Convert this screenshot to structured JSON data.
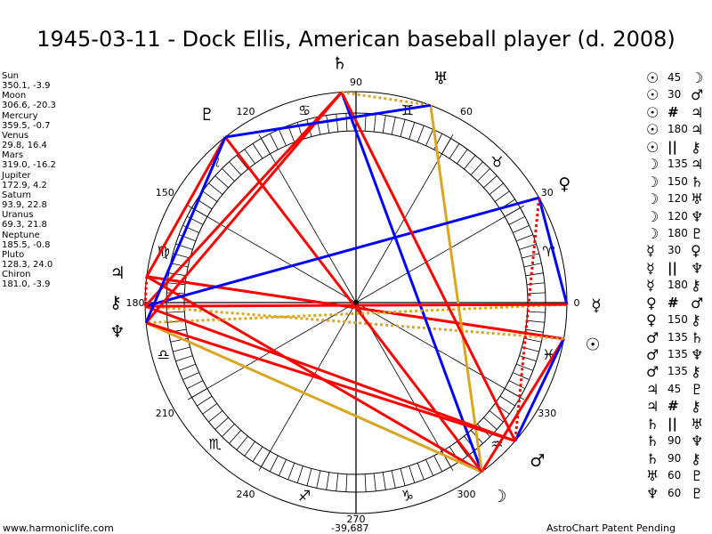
{
  "title": "1945-03-11 - Dock Ellis, American baseball player (d. 2008)",
  "planets": [
    {
      "name": "Sun",
      "coords": "350.1, -3.9",
      "lon": 350.1,
      "glyph": "☉"
    },
    {
      "name": "Moon",
      "coords": "306.6, -20.3",
      "lon": 306.6,
      "glyph": "☽"
    },
    {
      "name": "Mercury",
      "coords": "359.5, -0.7",
      "lon": 359.5,
      "glyph": "☿"
    },
    {
      "name": "Venus",
      "coords": "29.8, 16.4",
      "lon": 29.8,
      "glyph": "♀"
    },
    {
      "name": "Mars",
      "coords": "319.0, -16.2",
      "lon": 319.0,
      "glyph": "♂"
    },
    {
      "name": "Jupiter",
      "coords": "172.9, 4.2",
      "lon": 172.9,
      "glyph": "♃"
    },
    {
      "name": "Saturn",
      "coords": "93.9, 22.8",
      "lon": 93.9,
      "glyph": "♄"
    },
    {
      "name": "Uranus",
      "coords": "69.3, 21.8",
      "lon": 69.3,
      "glyph": "♅"
    },
    {
      "name": "Neptune",
      "coords": "185.5, -0.8",
      "lon": 185.5,
      "glyph": "♆"
    },
    {
      "name": "Pluto",
      "coords": "128.3, 24.0",
      "lon": 128.3,
      "glyph": "♇"
    },
    {
      "name": "Chiron",
      "coords": "181.0, -3.9",
      "lon": 181.0,
      "glyph": "⚷"
    }
  ],
  "aspects": [
    {
      "p1": "Sun",
      "a": "45",
      "p2": "Moon"
    },
    {
      "p1": "Sun",
      "a": "30",
      "p2": "Mars"
    },
    {
      "p1": "Sun",
      "a": "#",
      "p2": "Jupiter"
    },
    {
      "p1": "Sun",
      "a": "180",
      "p2": "Jupiter"
    },
    {
      "p1": "Sun",
      "a": "||",
      "p2": "Chiron"
    },
    {
      "p1": "Moon",
      "a": "135",
      "p2": "Jupiter"
    },
    {
      "p1": "Moon",
      "a": "150",
      "p2": "Saturn"
    },
    {
      "p1": "Moon",
      "a": "120",
      "p2": "Uranus"
    },
    {
      "p1": "Moon",
      "a": "120",
      "p2": "Neptune"
    },
    {
      "p1": "Moon",
      "a": "180",
      "p2": "Pluto"
    },
    {
      "p1": "Mercury",
      "a": "30",
      "p2": "Venus"
    },
    {
      "p1": "Mercury",
      "a": "||",
      "p2": "Neptune"
    },
    {
      "p1": "Mercury",
      "a": "180",
      "p2": "Chiron"
    },
    {
      "p1": "Venus",
      "a": "#",
      "p2": "Mars"
    },
    {
      "p1": "Venus",
      "a": "150",
      "p2": "Chiron"
    },
    {
      "p1": "Mars",
      "a": "135",
      "p2": "Saturn"
    },
    {
      "p1": "Mars",
      "a": "135",
      "p2": "Neptune"
    },
    {
      "p1": "Mars",
      "a": "135",
      "p2": "Chiron"
    },
    {
      "p1": "Jupiter",
      "a": "45",
      "p2": "Pluto"
    },
    {
      "p1": "Jupiter",
      "a": "#",
      "p2": "Chiron"
    },
    {
      "p1": "Saturn",
      "a": "||",
      "p2": "Uranus"
    },
    {
      "p1": "Saturn",
      "a": "90",
      "p2": "Neptune"
    },
    {
      "p1": "Saturn",
      "a": "90",
      "p2": "Chiron"
    },
    {
      "p1": "Uranus",
      "a": "60",
      "p2": "Pluto"
    },
    {
      "p1": "Neptune",
      "a": "60",
      "p2": "Pluto"
    }
  ],
  "aspect_colors": {
    "hard": "#ff0000",
    "soft": "#0000ff",
    "trine": "#daa520",
    "parallel": "#daa520",
    "contraparallel": "#ff0000"
  },
  "degree_labels": [
    "0",
    "30",
    "60",
    "90",
    "120",
    "150",
    "180",
    "210",
    "240",
    "270",
    "300",
    "330"
  ],
  "zodiac_signs": [
    "♈",
    "♉",
    "♊",
    "♋",
    "♌",
    "♍",
    "♎",
    "♏",
    "♐",
    "♑",
    "♒",
    "♓"
  ],
  "footer": {
    "site": "www.harmoniclife.com",
    "value": "-39,687",
    "credit": "AstroChart Patent Pending"
  }
}
